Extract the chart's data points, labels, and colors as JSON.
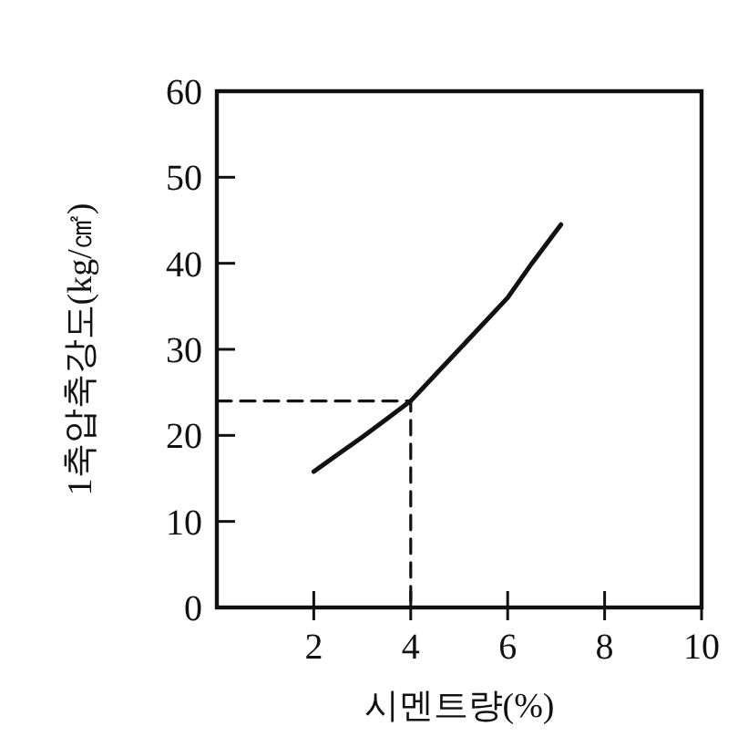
{
  "chart_data": {
    "type": "line",
    "xlabel": "시멘트량(%)",
    "ylabel": "1축압축강도(kg/㎠)",
    "xlim": [
      0,
      10
    ],
    "xticks": [
      2,
      4,
      6,
      8,
      10
    ],
    "ylim": [
      0,
      60
    ],
    "yticks": [
      0,
      10,
      20,
      30,
      40,
      50,
      60
    ],
    "grid": false,
    "series": [
      {
        "color": "#111111",
        "line_style": "solid",
        "x": [
          2,
          2.5,
          3,
          3.5,
          4,
          4.5,
          5,
          5.5,
          6,
          6.5,
          7.1
        ],
        "values": [
          15.8,
          17.8,
          19.8,
          21.9,
          24,
          27,
          30,
          33,
          36,
          40,
          44.5
        ]
      },
      {
        "color": "#111111",
        "line_style": "dashed",
        "x": [
          0,
          4,
          4
        ],
        "values": [
          24,
          24,
          0
        ]
      }
    ]
  }
}
